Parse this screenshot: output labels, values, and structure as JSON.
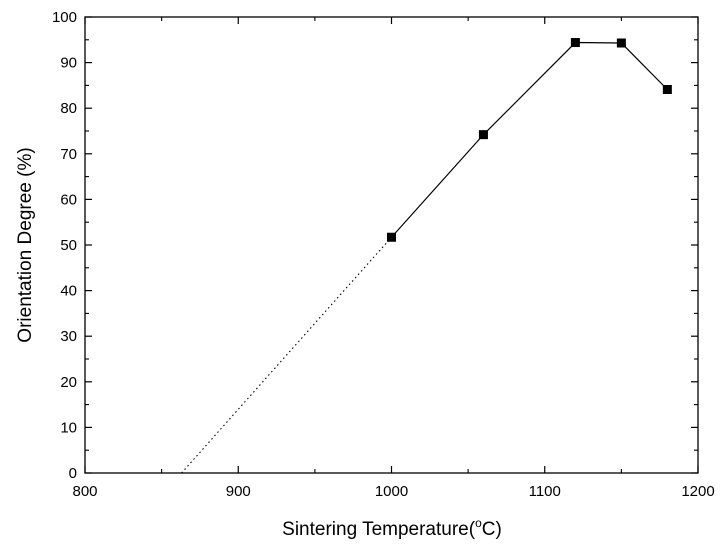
{
  "chart_data": {
    "type": "line",
    "title": "",
    "xlabel": "Sintering Temperature(",
    "xlabel_sup": "o",
    "xlabel_suffix": "C)",
    "ylabel": "Orientation Degree (%)",
    "xlim": [
      800,
      1200
    ],
    "ylim": [
      0,
      100
    ],
    "x_ticks": [
      800,
      900,
      1000,
      1100,
      1200
    ],
    "y_ticks": [
      0,
      10,
      20,
      30,
      40,
      50,
      60,
      70,
      80,
      90,
      100
    ],
    "grid": false,
    "series": [
      {
        "x": [
          1000,
          1060,
          1120,
          1150,
          1180
        ],
        "y": [
          51.7,
          74.2,
          94.4,
          94.3,
          84.1
        ],
        "marker": "square",
        "line": "solid",
        "color": "#000000"
      }
    ],
    "extrapolation": {
      "x": [
        863,
        1000
      ],
      "y": [
        0,
        51.7
      ],
      "line": "dotted",
      "color": "#000000"
    }
  }
}
